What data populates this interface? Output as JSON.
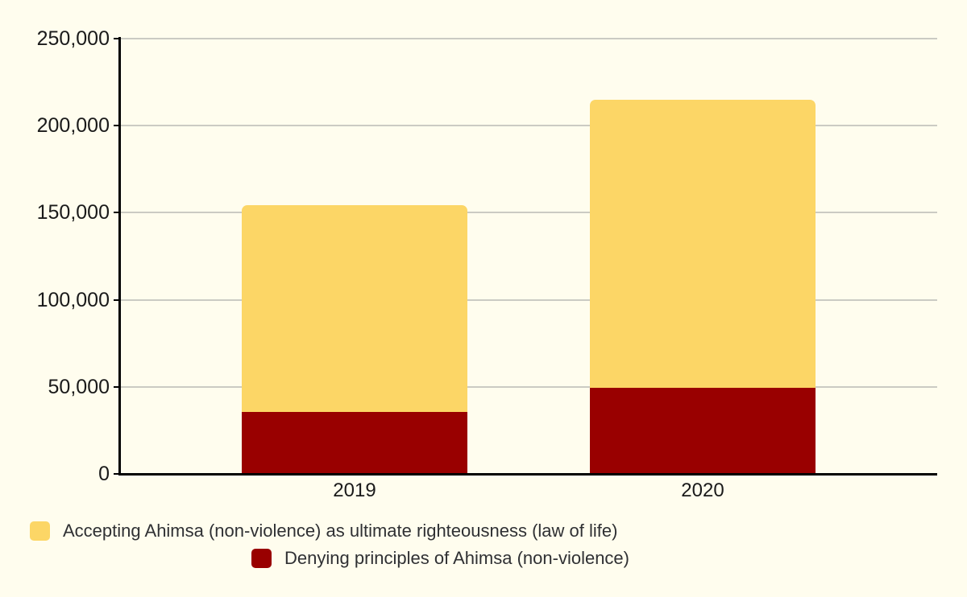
{
  "chart_data": {
    "type": "bar",
    "stacked": true,
    "title": "",
    "categories": [
      "2019",
      "2020"
    ],
    "series": [
      {
        "name": "Accepting Ahimsa (non-violence) as ultimate righteousness (law of life)",
        "color": "#FCD666",
        "values": [
          119000,
          165500
        ]
      },
      {
        "name": "Denying principles of Ahimsa (non-violence)",
        "color": "#990000",
        "values": [
          35500,
          49500
        ]
      }
    ],
    "stack_order_bottom_to_top": [
      "Denying principles of Ahimsa (non-violence)",
      "Accepting Ahimsa (non-violence) as ultimate righteousness (law of life)"
    ],
    "stack_totals": [
      154500,
      215000
    ],
    "xlabel": "",
    "ylabel": "",
    "ylim": [
      0,
      250000
    ],
    "ytick_interval": 50000,
    "ytick_labels": [
      "0",
      "50,000",
      "100,000",
      "150,000",
      "200,000",
      "250,000"
    ],
    "grid": "horizontal",
    "legend_position": "bottom"
  },
  "colors": {
    "background": "#FFFDEE",
    "gridline": "#CBCBC3",
    "axis": "#000000",
    "tick_text": "#1A1A1A",
    "legend_text": "#2F3033"
  }
}
